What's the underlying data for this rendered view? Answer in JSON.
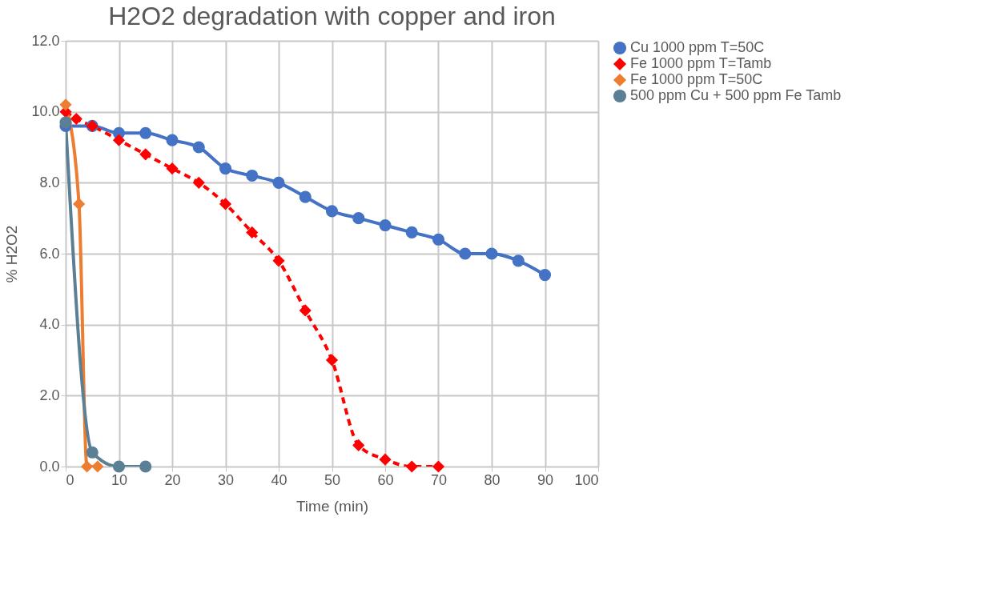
{
  "chart_data": {
    "type": "line",
    "title": "H2O2 degradation with copper and iron",
    "xlabel": "Time (min)",
    "ylabel": "% H2O2",
    "xlim": [
      0,
      100
    ],
    "xticks": [
      0,
      10,
      20,
      30,
      40,
      50,
      60,
      70,
      80,
      90,
      100
    ],
    "ylim": [
      0,
      12
    ],
    "yticks": [
      {
        "value": 0,
        "label": "0.0"
      },
      {
        "value": 2,
        "label": "2.0"
      },
      {
        "value": 4,
        "label": "4.0"
      },
      {
        "value": 6,
        "label": "6.0"
      },
      {
        "value": 8,
        "label": "8.0"
      },
      {
        "value": 10,
        "label": "10.0"
      },
      {
        "value": 12,
        "label": "12.0"
      }
    ],
    "grid": true,
    "legend": "right",
    "series": [
      {
        "name": "Cu 1000 ppm T=50C",
        "color": "#4472c4",
        "marker": "circle",
        "line_style": "solid",
        "x": [
          0,
          5,
          10,
          15,
          20,
          25,
          30,
          35,
          40,
          45,
          50,
          55,
          60,
          65,
          70,
          75,
          80,
          85,
          90
        ],
        "values": [
          9.6,
          9.6,
          9.4,
          9.4,
          9.2,
          9.0,
          8.4,
          8.2,
          8.0,
          7.6,
          7.2,
          7.0,
          6.8,
          6.6,
          6.4,
          6.0,
          6.0,
          5.8,
          5.4
        ]
      },
      {
        "name": "Fe 1000 ppm T=Tamb",
        "color": "#ff0000",
        "marker": "diamond",
        "line_style": "dashed",
        "x": [
          0,
          2,
          5,
          10,
          15,
          20,
          25,
          30,
          35,
          40,
          45,
          50,
          55,
          60,
          65,
          70
        ],
        "values": [
          10.0,
          9.8,
          9.6,
          9.2,
          8.8,
          8.4,
          8.0,
          7.4,
          6.6,
          5.8,
          4.4,
          3.0,
          0.6,
          0.2,
          0.0,
          0.0
        ]
      },
      {
        "name": "Fe 1000 ppm T=50C",
        "color": "#ed7d31",
        "marker": "diamond",
        "line_style": "solid",
        "x": [
          0,
          2.5,
          4,
          6
        ],
        "values": [
          10.2,
          7.4,
          0.0,
          0.0
        ]
      },
      {
        "name": "500 ppm Cu + 500 ppm Fe Tamb",
        "color": "#5b7f95",
        "marker": "circle",
        "line_style": "solid",
        "x": [
          0,
          5,
          10,
          15
        ],
        "values": [
          9.7,
          0.4,
          0.0,
          0.0
        ]
      }
    ]
  }
}
